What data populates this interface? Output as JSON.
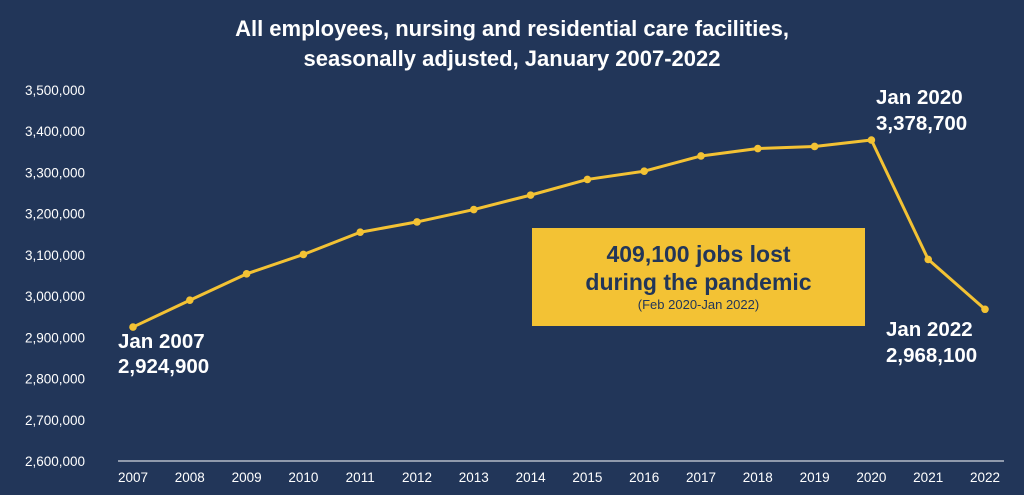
{
  "chart_data": {
    "type": "line",
    "title": [
      "All employees, nursing and residential care facilities,",
      "seasonally adjusted, January 2007-2022"
    ],
    "xlabel": "",
    "ylabel": "",
    "categories": [
      "2007",
      "2008",
      "2009",
      "2010",
      "2011",
      "2012",
      "2013",
      "2014",
      "2015",
      "2016",
      "2017",
      "2018",
      "2019",
      "2020",
      "2021",
      "2022"
    ],
    "series": [
      {
        "values": [
          2924900,
          2990000,
          3054000,
          3101000,
          3155000,
          3180000,
          3210000,
          3245000,
          3283000,
          3303000,
          3340000,
          3358000,
          3363000,
          3378700,
          3089000,
          2968100
        ],
        "color": "#f3c234"
      }
    ],
    "ylim": [
      2600000,
      3500000
    ],
    "yticks": [
      "2,600,000",
      "2,700,000",
      "2,800,000",
      "2,900,000",
      "3,000,000",
      "3,100,000",
      "3,200,000",
      "3,300,000",
      "3,400,000",
      "3,500,000"
    ],
    "grid": false,
    "background": "#223659",
    "annotations": {
      "start": {
        "line1": "Jan 2007",
        "line2": "2,924,900"
      },
      "peak": {
        "line1": "Jan 2020",
        "line2": "3,378,700"
      },
      "end": {
        "line1": "Jan 2022",
        "line2": "2,968,100"
      }
    },
    "callout": {
      "line1": "409,100 jobs lost",
      "line2": "during the pandemic",
      "sub": "(Feb 2020-Jan 2022)",
      "color": "#f3c234"
    }
  }
}
